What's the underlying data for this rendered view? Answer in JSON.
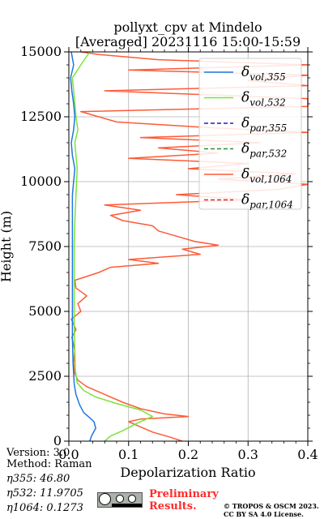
{
  "chart_data": {
    "type": "line",
    "title": "pollyxt_cpv at Mindelo",
    "subtitle": "[Averaged] 20231116 15:00-15:59",
    "xlabel": "Depolarization Ratio",
    "ylabel": "Height (m)",
    "xlim": [
      0,
      0.4
    ],
    "ylim": [
      0,
      15000
    ],
    "x_ticks": [
      "0.0",
      "0.1",
      "0.2",
      "0.3",
      "0.4"
    ],
    "y_ticks": [
      "0",
      "2500",
      "5000",
      "7500",
      "10000",
      "12500",
      "15000"
    ],
    "grid": true,
    "legend_position": "top-right",
    "series": [
      {
        "name": "δvol,355",
        "legend_main": "δ",
        "legend_sub": "vol,355",
        "color": "#1f77e0",
        "dash": "solid",
        "points": [
          [
            0.035,
            0
          ],
          [
            0.038,
            200
          ],
          [
            0.045,
            500
          ],
          [
            0.042,
            750
          ],
          [
            0.035,
            900
          ],
          [
            0.025,
            1100
          ],
          [
            0.018,
            1400
          ],
          [
            0.012,
            1800
          ],
          [
            0.009,
            2200
          ],
          [
            0.007,
            3000
          ],
          [
            0.006,
            4000
          ],
          [
            0.006,
            5000
          ],
          [
            0.006,
            6000
          ],
          [
            0.006,
            7000
          ],
          [
            0.006,
            8000
          ],
          [
            0.006,
            9000
          ],
          [
            0.006,
            9500
          ],
          [
            0.008,
            10000
          ],
          [
            0.01,
            10500
          ],
          [
            0.006,
            11000
          ],
          [
            0.004,
            11500
          ],
          [
            0.008,
            12000
          ],
          [
            0.01,
            12500
          ],
          [
            0.008,
            13000
          ],
          [
            0.005,
            13500
          ],
          [
            0.003,
            14000
          ],
          [
            0.008,
            14500
          ],
          [
            0.004,
            15000
          ]
        ]
      },
      {
        "name": "δvol,532",
        "legend_main": "δ",
        "legend_sub": "vol,532",
        "color": "#7be33a",
        "dash": "solid",
        "points": [
          [
            0.06,
            0
          ],
          [
            0.07,
            200
          ],
          [
            0.09,
            400
          ],
          [
            0.115,
            700
          ],
          [
            0.14,
            950
          ],
          [
            0.12,
            1200
          ],
          [
            0.08,
            1450
          ],
          [
            0.045,
            1700
          ],
          [
            0.025,
            1950
          ],
          [
            0.014,
            2250
          ],
          [
            0.011,
            2700
          ],
          [
            0.01,
            3500
          ],
          [
            0.009,
            4500
          ],
          [
            0.009,
            5500
          ],
          [
            0.009,
            6500
          ],
          [
            0.009,
            7500
          ],
          [
            0.01,
            8500
          ],
          [
            0.012,
            9500
          ],
          [
            0.014,
            10500
          ],
          [
            0.012,
            11000
          ],
          [
            0.01,
            11500
          ],
          [
            0.015,
            12000
          ],
          [
            0.012,
            12500
          ],
          [
            0.01,
            13000
          ],
          [
            0.008,
            13500
          ],
          [
            0.006,
            14000
          ],
          [
            0.02,
            14500
          ],
          [
            0.035,
            15000
          ]
        ]
      },
      {
        "name": "δpar,355",
        "legend_main": "δ",
        "legend_sub": "par,355",
        "color": "#1f1fc8",
        "dash": "dashed",
        "points": []
      },
      {
        "name": "δpar,532",
        "legend_main": "δ",
        "legend_sub": "par,532",
        "color": "#2e8b3a",
        "dash": "dashed",
        "points": []
      },
      {
        "name": "δvol,1064",
        "legend_main": "δ",
        "legend_sub": "vol,1064",
        "color": "#ff5a36",
        "dash": "solid",
        "points": [
          [
            0.19,
            0
          ],
          [
            0.17,
            150
          ],
          [
            0.14,
            350
          ],
          [
            0.12,
            550
          ],
          [
            0.1,
            750
          ],
          [
            0.12,
            850
          ],
          [
            0.2,
            950
          ],
          [
            0.16,
            1050
          ],
          [
            0.12,
            1250
          ],
          [
            0.09,
            1500
          ],
          [
            0.06,
            1800
          ],
          [
            0.03,
            2100
          ],
          [
            0.015,
            2350
          ],
          [
            0.01,
            2600
          ],
          [
            0.008,
            3000
          ],
          [
            0.01,
            3500
          ],
          [
            0.005,
            4000
          ],
          [
            0.012,
            4300
          ],
          [
            0.004,
            4700
          ],
          [
            0.02,
            5000
          ],
          [
            0.015,
            5300
          ],
          [
            0.03,
            5600
          ],
          [
            0.012,
            5900
          ],
          [
            0.01,
            6200
          ],
          [
            0.05,
            6500
          ],
          [
            0.07,
            6700
          ],
          [
            0.15,
            6850
          ],
          [
            0.1,
            7000
          ],
          [
            0.22,
            7200
          ],
          [
            0.19,
            7400
          ],
          [
            0.25,
            7550
          ],
          [
            0.21,
            7700
          ],
          [
            0.18,
            7900
          ],
          [
            0.15,
            8100
          ],
          [
            0.14,
            8300
          ],
          [
            0.09,
            8500
          ],
          [
            0.07,
            8700
          ],
          [
            0.12,
            8900
          ],
          [
            0.06,
            9100
          ],
          [
            0.3,
            9300
          ],
          [
            0.18,
            9500
          ],
          [
            0.35,
            9700
          ],
          [
            0.4,
            9900
          ],
          [
            0.25,
            10100
          ],
          [
            0.38,
            10300
          ],
          [
            0.2,
            10500
          ],
          [
            0.3,
            10700
          ],
          [
            0.1,
            10900
          ],
          [
            0.25,
            11100
          ],
          [
            0.15,
            11300
          ],
          [
            0.32,
            11500
          ],
          [
            0.12,
            11700
          ],
          [
            0.4,
            11900
          ],
          [
            0.22,
            12100
          ],
          [
            0.08,
            12300
          ],
          [
            0.05,
            12500
          ],
          [
            0.02,
            12700
          ],
          [
            0.4,
            12900
          ],
          [
            0.4,
            13200
          ],
          [
            0.06,
            13500
          ],
          [
            0.4,
            13700
          ],
          [
            0.3,
            13900
          ],
          [
            0.4,
            14100
          ],
          [
            0.1,
            14300
          ],
          [
            0.4,
            14500
          ],
          [
            0.15,
            14700
          ],
          [
            0.05,
            14900
          ],
          [
            0.02,
            15000
          ]
        ]
      },
      {
        "name": "δpar,1064",
        "legend_main": "δ",
        "legend_sub": "par,1064",
        "color": "#d42a2a",
        "dash": "dashed",
        "points": []
      }
    ]
  },
  "info": {
    "version": "Version: 3.0",
    "method": "Method: Raman",
    "eta355": "η355:  46.80",
    "eta532": "η532: 11.9705",
    "eta1064": "η1064: 0.1273"
  },
  "footer": {
    "preliminary": "Preliminary",
    "results": "Results.",
    "copyright": "© TROPOS & OSCM 2023.",
    "license_text": "CC BY SA 4.0 License.",
    "cc_glyphs": "cc · by · sa"
  },
  "colors": {
    "grid": "#b0b0b0",
    "preliminary_text": "#ff2a2a"
  }
}
